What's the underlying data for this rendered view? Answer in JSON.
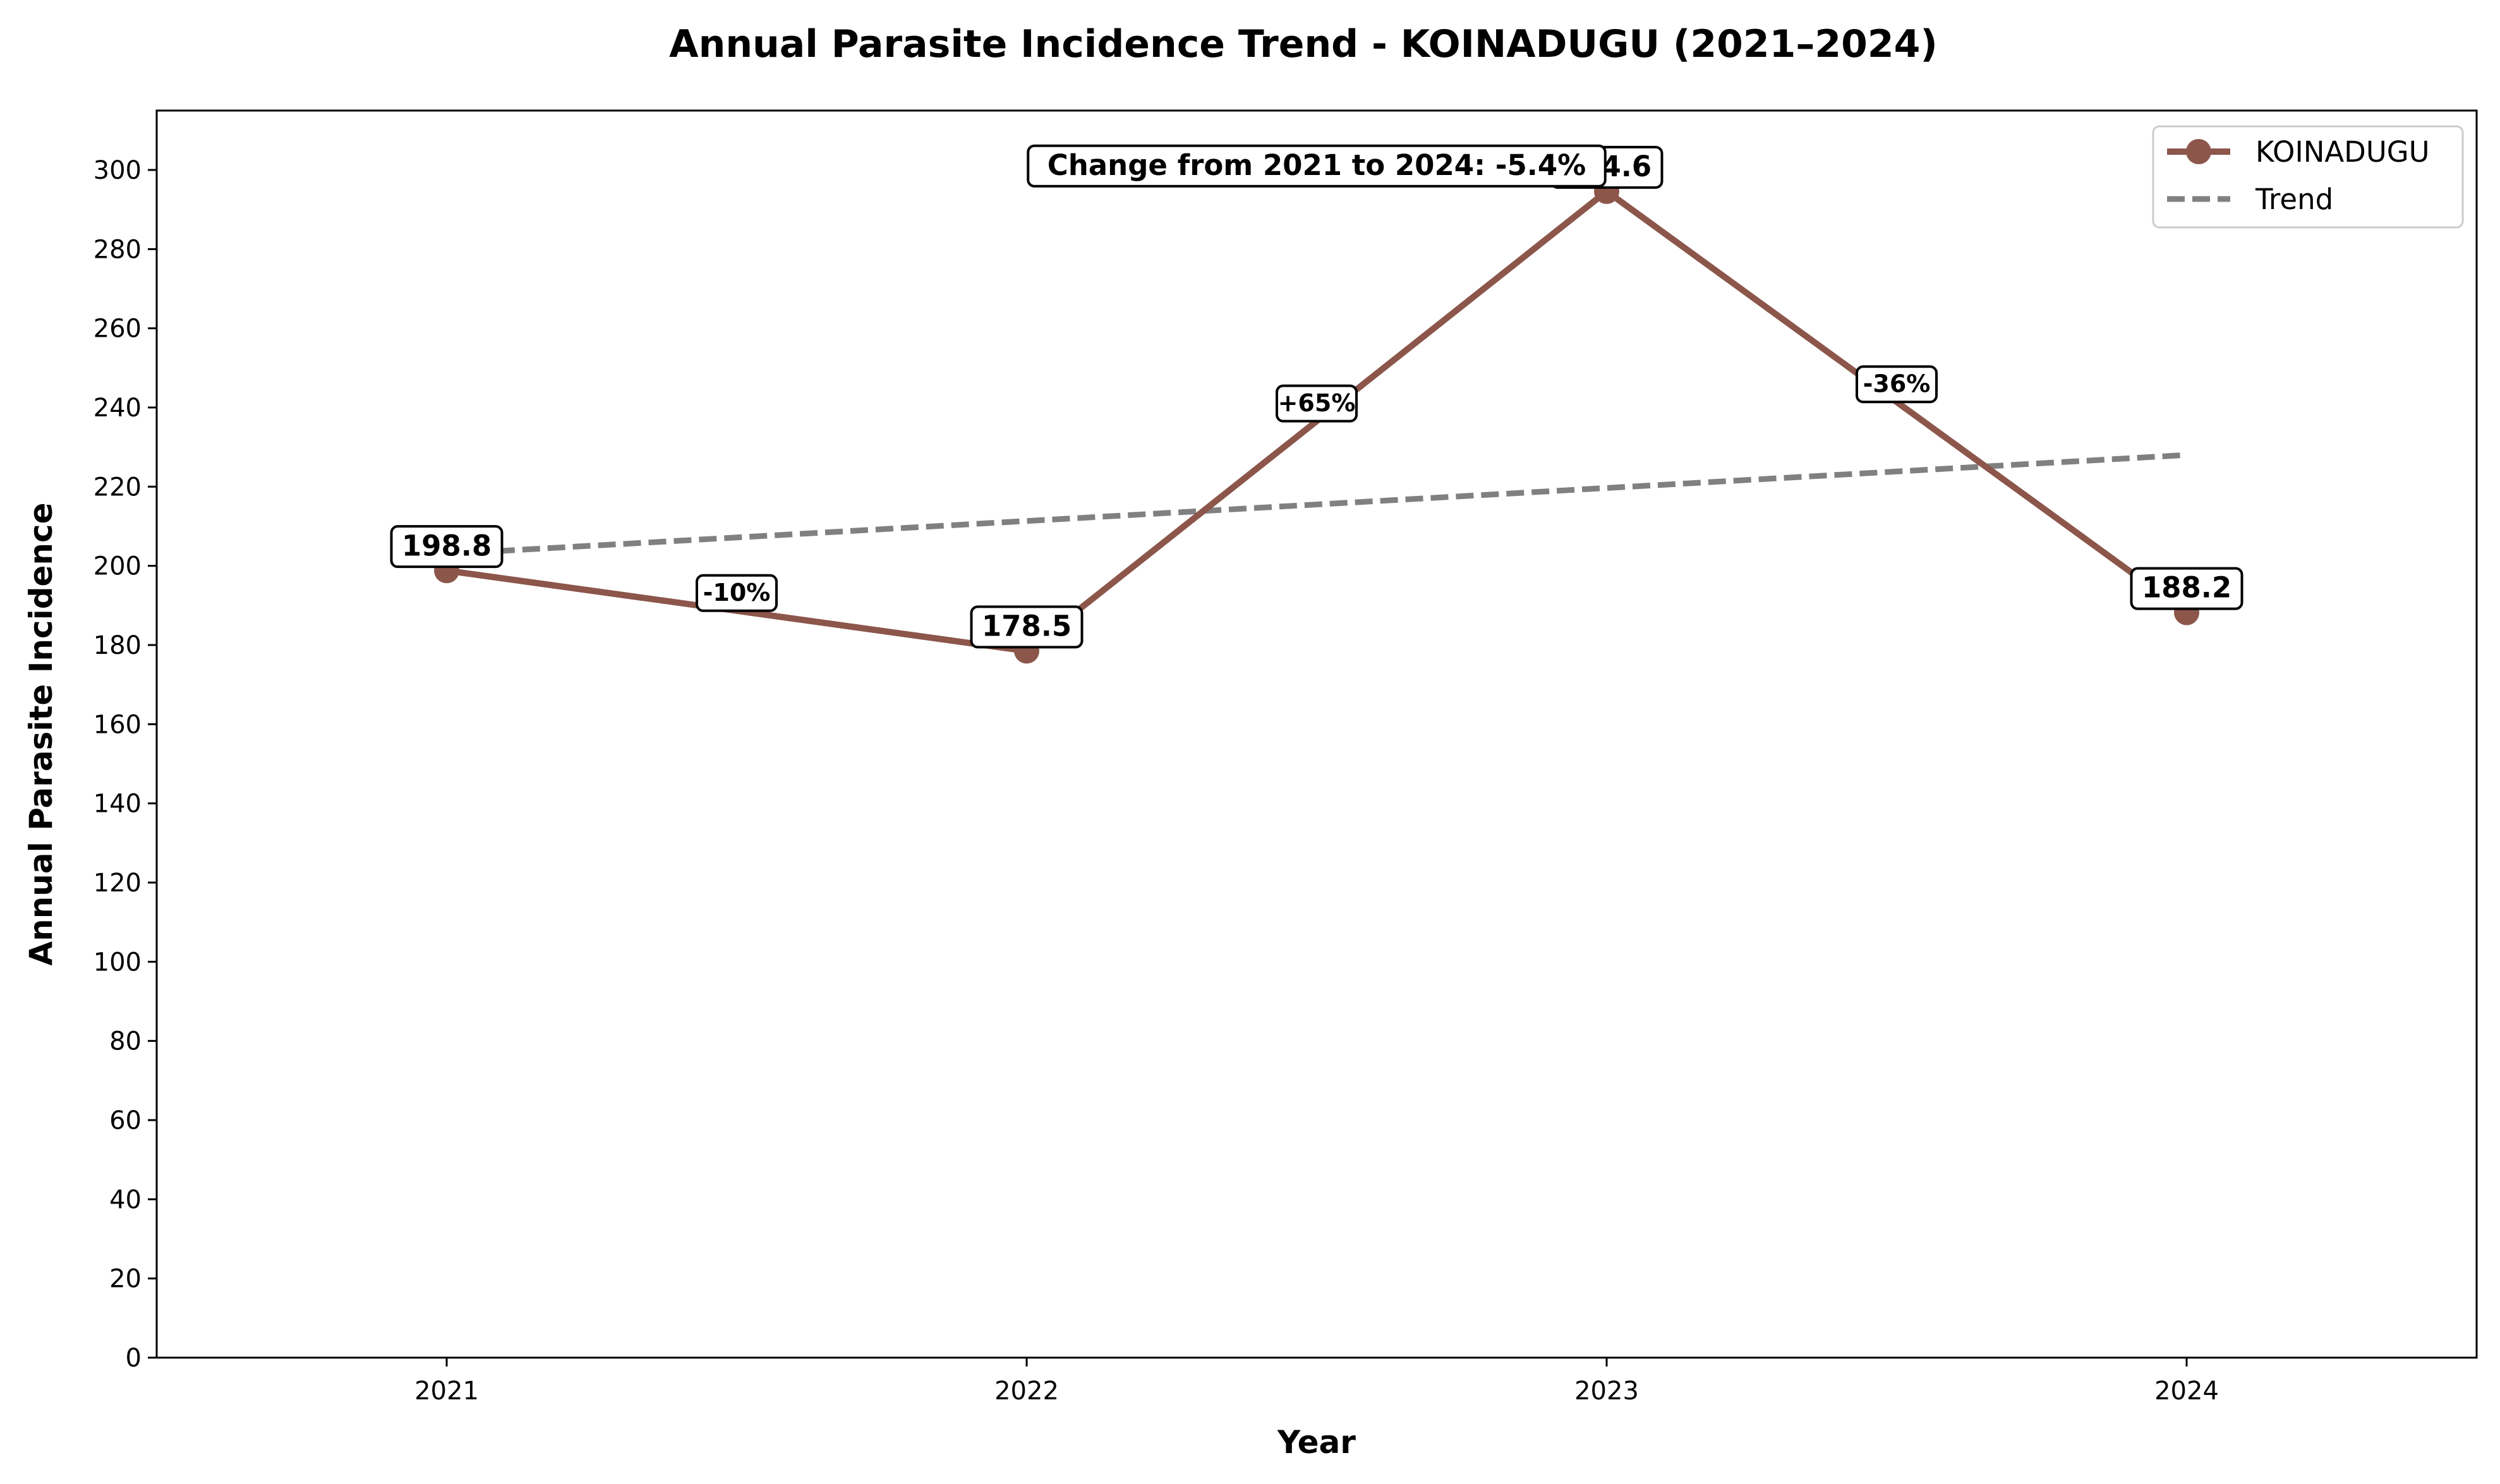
{
  "chart_data": {
    "type": "line",
    "title": "Annual Parasite Incidence Trend - KOINADUGU (2021–2024)",
    "xlabel": "Year",
    "ylabel": "Annual Parasite Incidence",
    "categories": [
      "2021",
      "2022",
      "2023",
      "2024"
    ],
    "x": [
      2021,
      2022,
      2023,
      2024
    ],
    "series": [
      {
        "name": "KOINADUGU",
        "values": [
          198.8,
          178.5,
          294.6,
          188.2
        ],
        "value_labels": [
          "198.8",
          "178.5",
          "294.6",
          "188.2"
        ],
        "color": "#8c564b"
      }
    ],
    "trend": {
      "name": "Trend",
      "start": [
        2021,
        203.0
      ],
      "end": [
        2024,
        228.0
      ],
      "color": "#808080",
      "style": "dashed"
    },
    "segment_changes": [
      "-10%",
      "+65%",
      "-36%"
    ],
    "note": "Change from 2021 to 2024: -5.4%",
    "ylim": [
      0,
      315
    ],
    "yticks": [
      0,
      20,
      40,
      60,
      80,
      100,
      120,
      140,
      160,
      180,
      200,
      220,
      240,
      260,
      280,
      300
    ],
    "xlim": [
      2020.5,
      2024.5
    ],
    "legend_position": "top-right",
    "grid": false
  }
}
